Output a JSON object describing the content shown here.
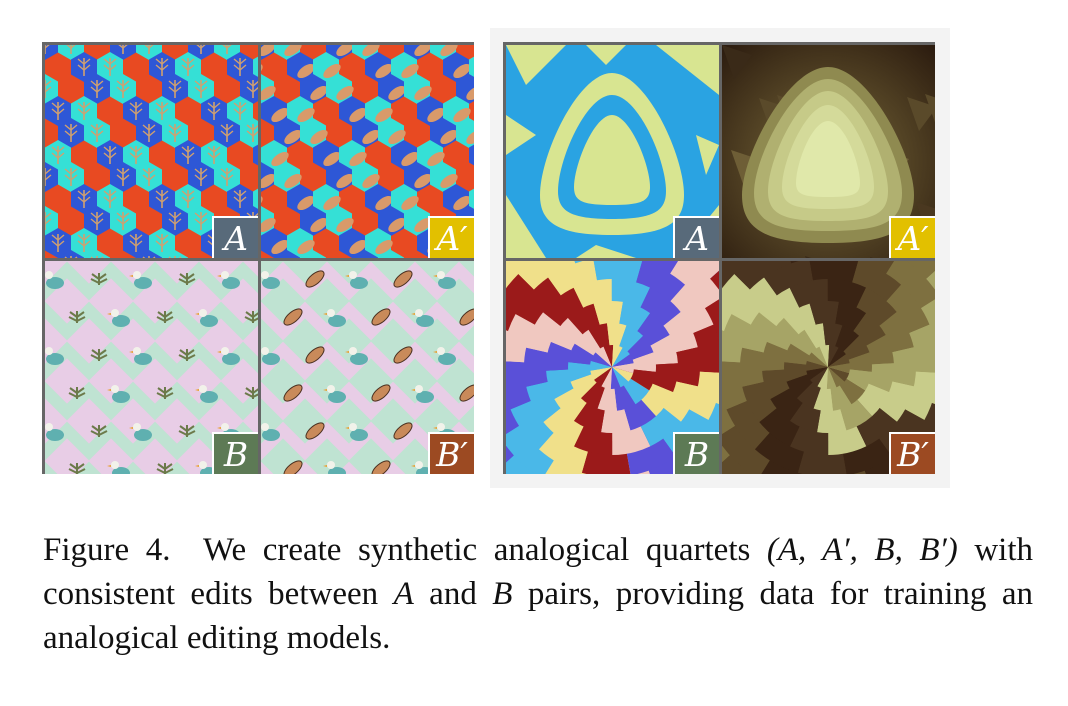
{
  "figure": {
    "left_panel": {
      "labels": {
        "a": "A",
        "a_prime": "A′",
        "b": "B",
        "b_prime": "B′"
      },
      "label_colors": {
        "a": "#586a7a",
        "a_prime": "#e2c000",
        "b": "#5d7a55",
        "b_prime": "#9c4a22"
      }
    },
    "right_panel": {
      "labels": {
        "a": "A",
        "a_prime": "A′",
        "b": "B",
        "b_prime": "B′"
      },
      "label_colors": {
        "a": "#586a7a",
        "a_prime": "#e2c000",
        "b": "#5d7a55",
        "b_prime": "#9c4a22"
      }
    }
  },
  "caption": {
    "prefix": "Figure 4.",
    "line1_text": "We create synthetic analogical quartets",
    "quartet": "(A, A′, B, B′)",
    "line2_a": "with consistent edits between",
    "var_a": "A",
    "line2_b": "and",
    "var_b": "B",
    "line2_c": "pairs, providing data for",
    "line3": "training an analogical editing models."
  }
}
